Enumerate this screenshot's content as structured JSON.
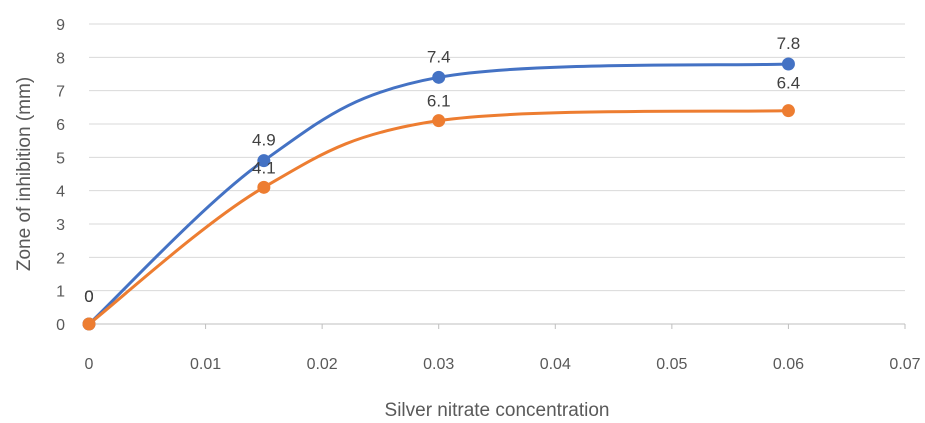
{
  "chart_data": {
    "type": "line",
    "title": "",
    "xlabel": "Silver nitrate concentration",
    "ylabel": "Zone of inhibition (mm)",
    "xlim": [
      0,
      0.07
    ],
    "ylim": [
      0,
      9
    ],
    "xticks": [
      "0",
      "0.01",
      "0.02",
      "0.03",
      "0.04",
      "0.05",
      "0.06",
      "0.07"
    ],
    "yticks": [
      "0",
      "1",
      "2",
      "3",
      "4",
      "5",
      "6",
      "7",
      "8",
      "9"
    ],
    "grid": "horizontal",
    "smooth": true,
    "data_labels": "on",
    "legend": "none",
    "series": [
      {
        "color": "#4472C4",
        "x": [
          0,
          0.015,
          0.03,
          0.06
        ],
        "y": [
          0,
          4.9,
          7.4,
          7.8
        ],
        "labels": [
          "0",
          "4.9",
          "7.4",
          "7.8"
        ]
      },
      {
        "color": "#ED7D31",
        "x": [
          0,
          0.015,
          0.03,
          0.06
        ],
        "y": [
          0,
          4.1,
          6.1,
          6.4
        ],
        "labels": [
          "0",
          "4.1",
          "6.1",
          "6.4"
        ]
      }
    ]
  }
}
